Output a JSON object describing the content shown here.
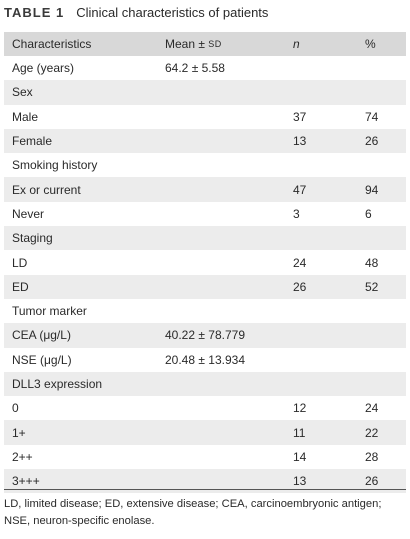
{
  "caption": {
    "label": "TABLE 1",
    "title": "Clinical characteristics of patients"
  },
  "header": {
    "characteristics": "Characteristics",
    "mean_prefix": "Mean ± ",
    "mean_sd": "SD",
    "n": "n",
    "percent": "%"
  },
  "rows": [
    {
      "label": "Age (years)",
      "mean": "64.2 ± 5.58",
      "n": "",
      "pct": ""
    },
    {
      "label": "Sex",
      "mean": "",
      "n": "",
      "pct": ""
    },
    {
      "label": "Male",
      "mean": "",
      "n": "37",
      "pct": "74"
    },
    {
      "label": "Female",
      "mean": "",
      "n": "13",
      "pct": "26"
    },
    {
      "label": "Smoking history",
      "mean": "",
      "n": "",
      "pct": ""
    },
    {
      "label": "Ex or current",
      "mean": "",
      "n": "47",
      "pct": "94"
    },
    {
      "label": "Never",
      "mean": "",
      "n": "3",
      "pct": "6"
    },
    {
      "label": "Staging",
      "mean": "",
      "n": "",
      "pct": ""
    },
    {
      "label": "LD",
      "mean": "",
      "n": "24",
      "pct": "48"
    },
    {
      "label": "ED",
      "mean": "",
      "n": "26",
      "pct": "52"
    },
    {
      "label": "Tumor marker",
      "mean": "",
      "n": "",
      "pct": ""
    },
    {
      "label": "CEA (μg/L)",
      "mean": "40.22 ± 78.779",
      "n": "",
      "pct": ""
    },
    {
      "label": "NSE (μg/L)",
      "mean": "20.48 ± 13.934",
      "n": "",
      "pct": ""
    },
    {
      "label": "DLL3 expression",
      "mean": "",
      "n": "",
      "pct": ""
    },
    {
      "label": "0",
      "mean": "",
      "n": "12",
      "pct": "24"
    },
    {
      "label": "1+",
      "mean": "",
      "n": "11",
      "pct": "22"
    },
    {
      "label": "2++",
      "mean": "",
      "n": "14",
      "pct": "28"
    },
    {
      "label": "3+++",
      "mean": "",
      "n": "13",
      "pct": "26"
    }
  ],
  "footnote": "LD, limited disease; ED, extensive disease; CEA, carcinoembryonic antigen; NSE, neuron-specific enolase."
}
